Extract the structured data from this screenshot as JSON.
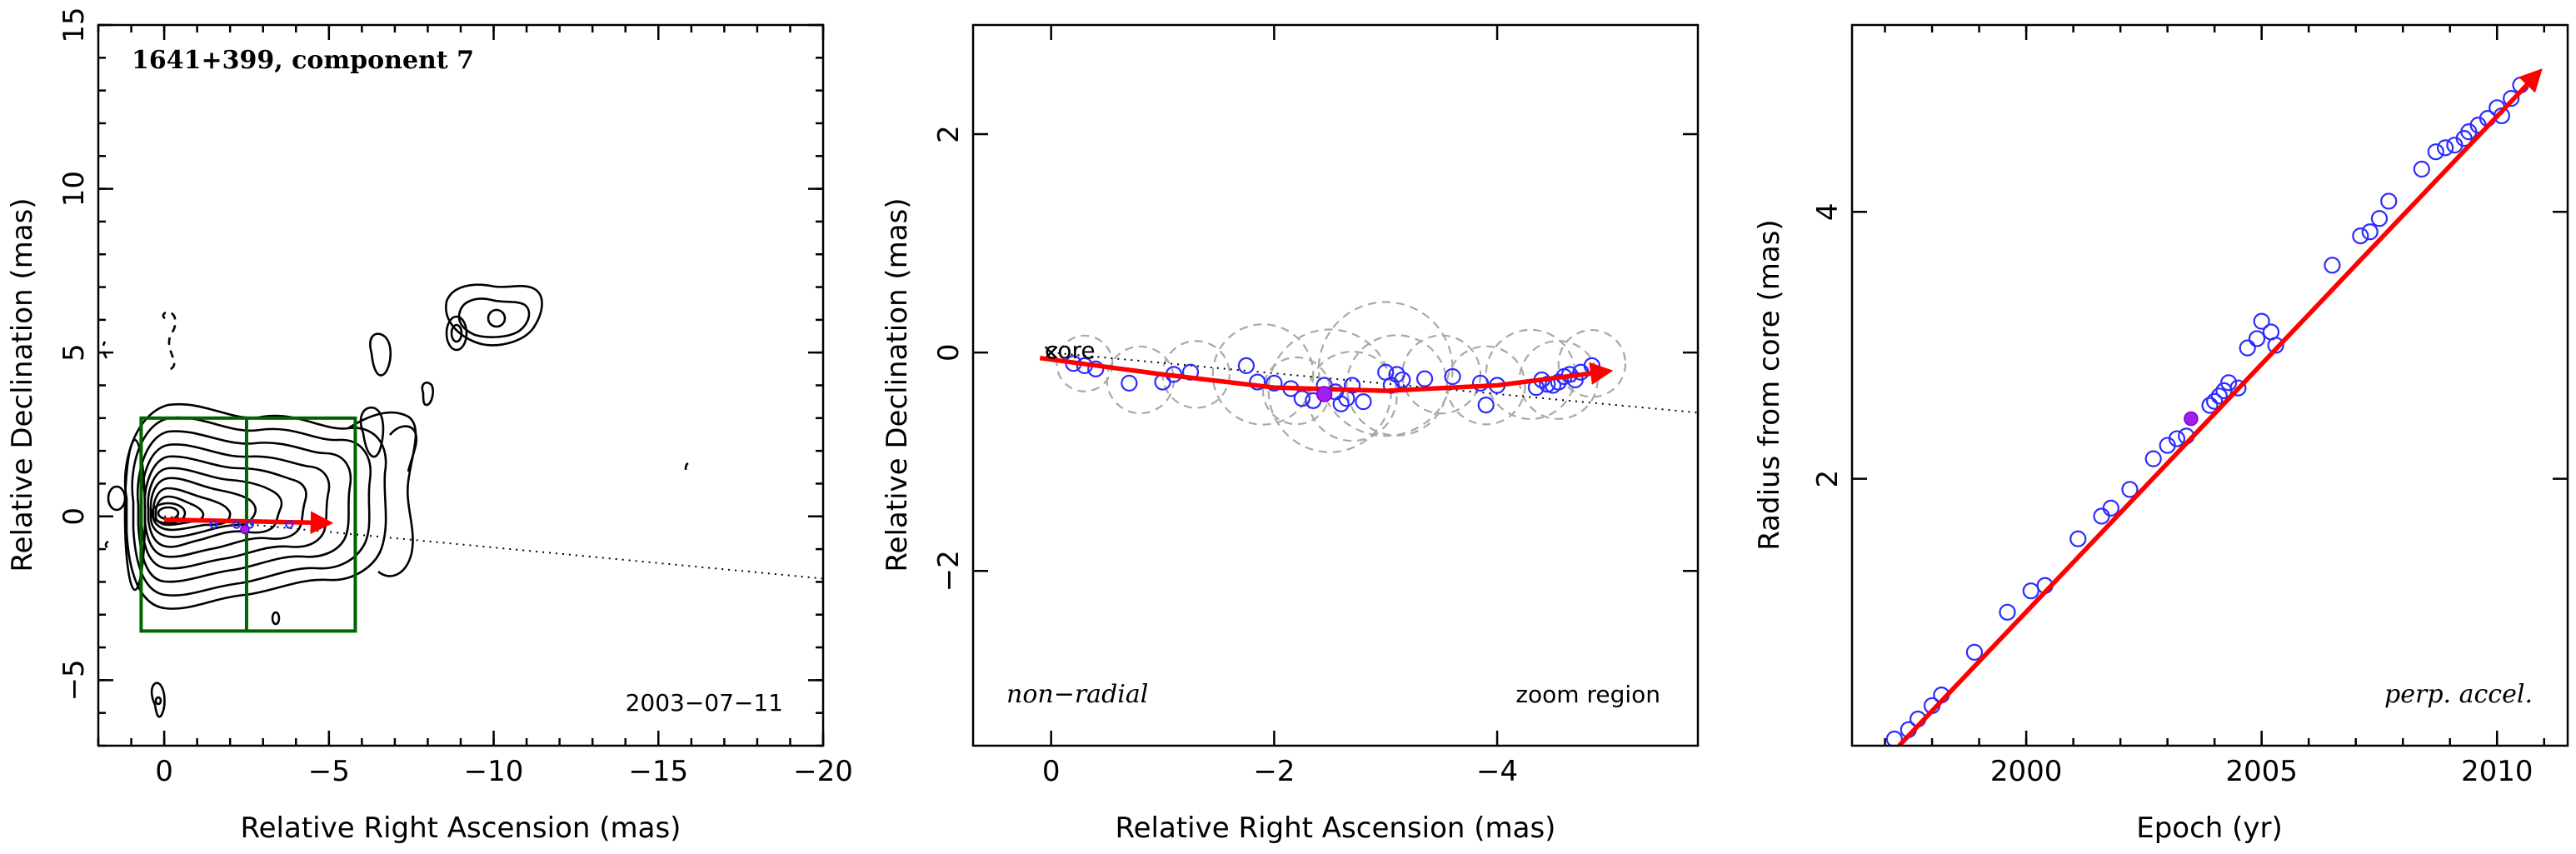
{
  "colors": {
    "axes": "#000000",
    "contours": "#000000",
    "zoom_box": "#006400",
    "trajectory": "#ff0000",
    "component_points": "#2c2cff",
    "reference_point": "#a020f0",
    "fit_circles": "#a8a8a8"
  },
  "chart_data": [
    {
      "type": "contour",
      "panel": "image",
      "xlabel": "Relative Right Ascension (mas)",
      "ylabel": "Relative Declination (mas)",
      "xlim": [
        2,
        -20
      ],
      "ylim": [
        -7,
        15
      ],
      "xticks": [
        0,
        -5,
        -10,
        -15,
        -20
      ],
      "xtick_labels": [
        "0",
        "−5",
        "−10",
        "−15",
        "−20"
      ],
      "yticks": [
        -5,
        0,
        5,
        10,
        15
      ],
      "ytick_labels": [
        "−5",
        "0",
        "5",
        "10",
        "15"
      ],
      "title_annotation": "1641+399, component 7",
      "date_annotation": "2003−07−11",
      "core_position": [
        0,
        0
      ],
      "jet_direction_line": {
        "from": [
          0,
          0
        ],
        "to": [
          -20,
          -1.9
        ]
      },
      "zoom_box": {
        "ra": [
          0.7,
          -5.8
        ],
        "dec": [
          -3.5,
          3.0
        ],
        "divider_ra": -2.5
      },
      "trajectory": {
        "start": [
          0,
          -0.1
        ],
        "end": [
          -5.0,
          -0.2
        ]
      }
    },
    {
      "type": "scatter",
      "panel": "zoom",
      "xlabel": "Relative Right Ascension (mas)",
      "ylabel": "Relative Declination (mas)",
      "xlim": [
        0.7,
        -5.8
      ],
      "ylim": [
        -3.6,
        3.0
      ],
      "xticks": [
        0,
        -2,
        -4
      ],
      "xtick_labels": [
        "0",
        "−2",
        "−4"
      ],
      "yticks": [
        -2,
        0,
        2
      ],
      "ytick_labels": [
        "−2",
        "0",
        "2"
      ],
      "core_label": "core",
      "left_annotation": "non−radial",
      "right_annotation": "zoom region",
      "reference_point": [
        -2.45,
        -0.38
      ],
      "trajectory": {
        "x": [
          0.1,
          -1.0,
          -2.0,
          -3.0,
          -4.0,
          -5.0
        ],
        "y": [
          -0.05,
          -0.2,
          -0.32,
          -0.35,
          -0.3,
          -0.17
        ]
      },
      "jet_direction_line": {
        "from": [
          0,
          0
        ],
        "to": [
          -5.8,
          -0.55
        ]
      },
      "points": [
        [
          -0.2,
          -0.1
        ],
        [
          -0.3,
          -0.12
        ],
        [
          -0.4,
          -0.15
        ],
        [
          -0.7,
          -0.28
        ],
        [
          -1.0,
          -0.27
        ],
        [
          -1.1,
          -0.2
        ],
        [
          -1.25,
          -0.18
        ],
        [
          -1.75,
          -0.12
        ],
        [
          -1.85,
          -0.27
        ],
        [
          -2.0,
          -0.28
        ],
        [
          -2.15,
          -0.33
        ],
        [
          -2.25,
          -0.42
        ],
        [
          -2.35,
          -0.44
        ],
        [
          -2.45,
          -0.3
        ],
        [
          -2.55,
          -0.36
        ],
        [
          -2.6,
          -0.47
        ],
        [
          -2.65,
          -0.42
        ],
        [
          -2.7,
          -0.3
        ],
        [
          -2.8,
          -0.45
        ],
        [
          -3.0,
          -0.18
        ],
        [
          -3.05,
          -0.3
        ],
        [
          -3.1,
          -0.2
        ],
        [
          -3.15,
          -0.25
        ],
        [
          -3.35,
          -0.24
        ],
        [
          -3.6,
          -0.22
        ],
        [
          -3.85,
          -0.28
        ],
        [
          -3.9,
          -0.48
        ],
        [
          -4.0,
          -0.3
        ],
        [
          -4.35,
          -0.32
        ],
        [
          -4.4,
          -0.25
        ],
        [
          -4.45,
          -0.29
        ],
        [
          -4.5,
          -0.3
        ],
        [
          -4.55,
          -0.27
        ],
        [
          -4.6,
          -0.22
        ],
        [
          -4.65,
          -0.2
        ],
        [
          -4.7,
          -0.25
        ],
        [
          -4.75,
          -0.18
        ],
        [
          -4.85,
          -0.12
        ]
      ],
      "fit_circles": [
        {
          "x": -0.3,
          "y": -0.1,
          "r": 0.25
        },
        {
          "x": -0.8,
          "y": -0.25,
          "r": 0.3
        },
        {
          "x": -1.3,
          "y": -0.2,
          "r": 0.3
        },
        {
          "x": -1.9,
          "y": -0.2,
          "r": 0.45
        },
        {
          "x": -2.2,
          "y": -0.35,
          "r": 0.3
        },
        {
          "x": -2.5,
          "y": -0.35,
          "r": 0.55
        },
        {
          "x": -2.7,
          "y": -0.4,
          "r": 0.4
        },
        {
          "x": -3.0,
          "y": -0.15,
          "r": 0.6
        },
        {
          "x": -3.1,
          "y": -0.3,
          "r": 0.45
        },
        {
          "x": -3.5,
          "y": -0.2,
          "r": 0.35
        },
        {
          "x": -3.9,
          "y": -0.3,
          "r": 0.35
        },
        {
          "x": -4.3,
          "y": -0.2,
          "r": 0.4
        },
        {
          "x": -4.55,
          "y": -0.25,
          "r": 0.35
        },
        {
          "x": -4.85,
          "y": -0.1,
          "r": 0.3
        }
      ]
    },
    {
      "type": "scatter",
      "panel": "radius-epoch",
      "xlabel": "Epoch (yr)",
      "ylabel": "Radius from core (mas)",
      "xlim": [
        1996.3,
        2011.5
      ],
      "ylim": [
        0.0,
        5.4
      ],
      "xticks": [
        2000,
        2005,
        2010
      ],
      "xtick_labels": [
        "2000",
        "2005",
        "2010"
      ],
      "yticks": [
        2,
        4
      ],
      "ytick_labels": [
        "2",
        "4"
      ],
      "annotation": "perp. accel.",
      "reference_point": [
        2003.5,
        2.45
      ],
      "fit_line": {
        "from": [
          1997.3,
          0.0
        ],
        "to": [
          2010.9,
          5.05
        ]
      },
      "points": [
        [
          1997.2,
          0.05
        ],
        [
          1997.5,
          0.12
        ],
        [
          1997.7,
          0.2
        ],
        [
          1998.0,
          0.3
        ],
        [
          1998.2,
          0.38
        ],
        [
          1998.9,
          0.7
        ],
        [
          1999.6,
          1.0
        ],
        [
          2000.1,
          1.16
        ],
        [
          2000.4,
          1.2
        ],
        [
          2001.1,
          1.55
        ],
        [
          2001.6,
          1.72
        ],
        [
          2001.8,
          1.78
        ],
        [
          2002.2,
          1.92
        ],
        [
          2002.7,
          2.15
        ],
        [
          2003.0,
          2.25
        ],
        [
          2003.2,
          2.3
        ],
        [
          2003.4,
          2.32
        ],
        [
          2003.9,
          2.55
        ],
        [
          2004.0,
          2.58
        ],
        [
          2004.1,
          2.62
        ],
        [
          2004.2,
          2.66
        ],
        [
          2004.3,
          2.72
        ],
        [
          2004.5,
          2.68
        ],
        [
          2004.7,
          2.98
        ],
        [
          2004.9,
          3.05
        ],
        [
          2005.0,
          3.18
        ],
        [
          2005.2,
          3.1
        ],
        [
          2005.3,
          3.0
        ],
        [
          2006.5,
          3.6
        ],
        [
          2007.1,
          3.82
        ],
        [
          2007.3,
          3.85
        ],
        [
          2007.5,
          3.95
        ],
        [
          2007.7,
          4.08
        ],
        [
          2008.4,
          4.32
        ],
        [
          2008.7,
          4.45
        ],
        [
          2008.9,
          4.48
        ],
        [
          2009.1,
          4.5
        ],
        [
          2009.3,
          4.55
        ],
        [
          2009.4,
          4.6
        ],
        [
          2009.6,
          4.65
        ],
        [
          2009.8,
          4.7
        ],
        [
          2010.0,
          4.78
        ],
        [
          2010.1,
          4.72
        ],
        [
          2010.3,
          4.85
        ],
        [
          2010.5,
          4.95
        ]
      ]
    }
  ]
}
